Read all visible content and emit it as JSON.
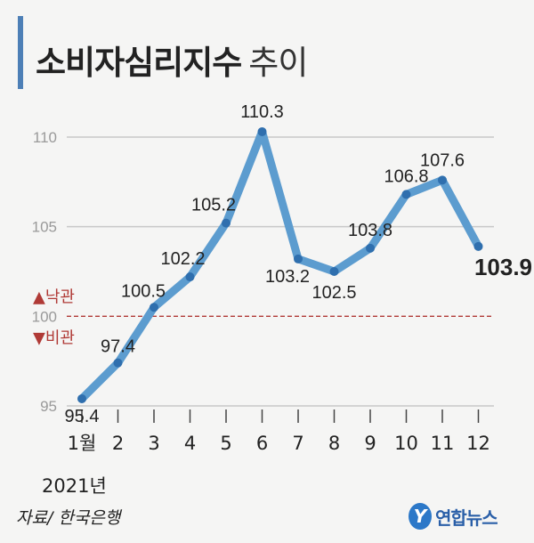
{
  "title": {
    "main": "소비자심리지수",
    "sub": "추이"
  },
  "source": "자료/ 한국은행",
  "logo": {
    "mark": "Y",
    "text": "연합뉴스"
  },
  "chart_data": {
    "type": "line",
    "title": "소비자심리지수 추이",
    "categories": [
      "1월",
      "2",
      "3",
      "4",
      "5",
      "6",
      "7",
      "8",
      "9",
      "10",
      "11",
      "12"
    ],
    "x_sublabel": "2021년",
    "values": [
      95.4,
      97.4,
      100.5,
      102.2,
      105.2,
      110.3,
      103.2,
      102.5,
      103.8,
      106.8,
      107.6,
      103.9
    ],
    "value_labels": [
      "95.4",
      "97.4",
      "100.5",
      "102.2",
      "105.2",
      "110.3",
      "103.2",
      "102.5",
      "103.8",
      "106.8",
      "107.6",
      "103.9"
    ],
    "yticks": [
      95,
      100,
      105,
      110
    ],
    "ylim": [
      95,
      110
    ],
    "grid": true,
    "reference_line": {
      "value": 100,
      "above_label": "▲낙관",
      "below_label": "▼비관"
    },
    "highlight_last": true,
    "colors": {
      "line": "#5c9ccf",
      "marker": "#2f6fae",
      "grid": "#c8c8c8",
      "reference": "#b03a36",
      "optimism": "#b03a36",
      "axis_text": "#9a9a9a"
    }
  }
}
